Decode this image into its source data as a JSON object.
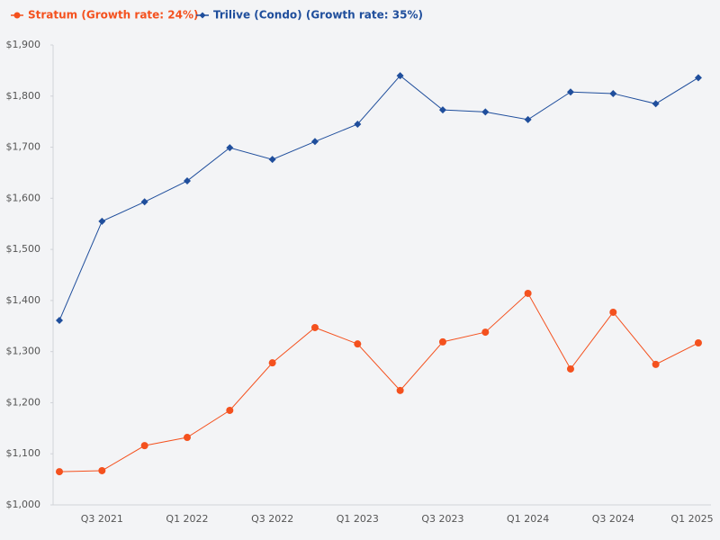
{
  "chart_data": {
    "type": "line",
    "categories": [
      null,
      "Q3 2021",
      null,
      "Q1 2022",
      null,
      "Q3 2022",
      null,
      "Q1 2023",
      null,
      "Q3 2023",
      null,
      "Q1 2024",
      null,
      "Q3 2024",
      null,
      "Q1 2025"
    ],
    "series": [
      {
        "name": "Stratum (Growth rate: 24%)",
        "color": "#f4511e",
        "marker": "circle",
        "values": [
          1065,
          1067,
          1116,
          1132,
          1185,
          1278,
          1347,
          1315,
          1224,
          1319,
          1338,
          1414,
          1266,
          1377,
          1275,
          1317
        ]
      },
      {
        "name": "Trilive (Condo) (Growth rate: 35%)",
        "color": "#1f4e9c",
        "marker": "diamond",
        "values": [
          1361,
          1555,
          1593,
          1634,
          1699,
          1676,
          1711,
          1745,
          1840,
          1773,
          1769,
          1754,
          1808,
          1805,
          1785,
          1836
        ]
      }
    ],
    "ylim": [
      1000,
      1900
    ],
    "yticks": [
      {
        "value": 1000,
        "label": "$1,000"
      },
      {
        "value": 1100,
        "label": "$1,100"
      },
      {
        "value": 1200,
        "label": "$1,200"
      },
      {
        "value": 1300,
        "label": "$1,300"
      },
      {
        "value": 1400,
        "label": "$1,400"
      },
      {
        "value": 1500,
        "label": "$1,500"
      },
      {
        "value": 1600,
        "label": "$1,600"
      },
      {
        "value": 1700,
        "label": "$1,700"
      },
      {
        "value": 1800,
        "label": "$1,800"
      },
      {
        "value": 1900,
        "label": "$1,900"
      }
    ],
    "legend": "top-left",
    "grid": false
  }
}
